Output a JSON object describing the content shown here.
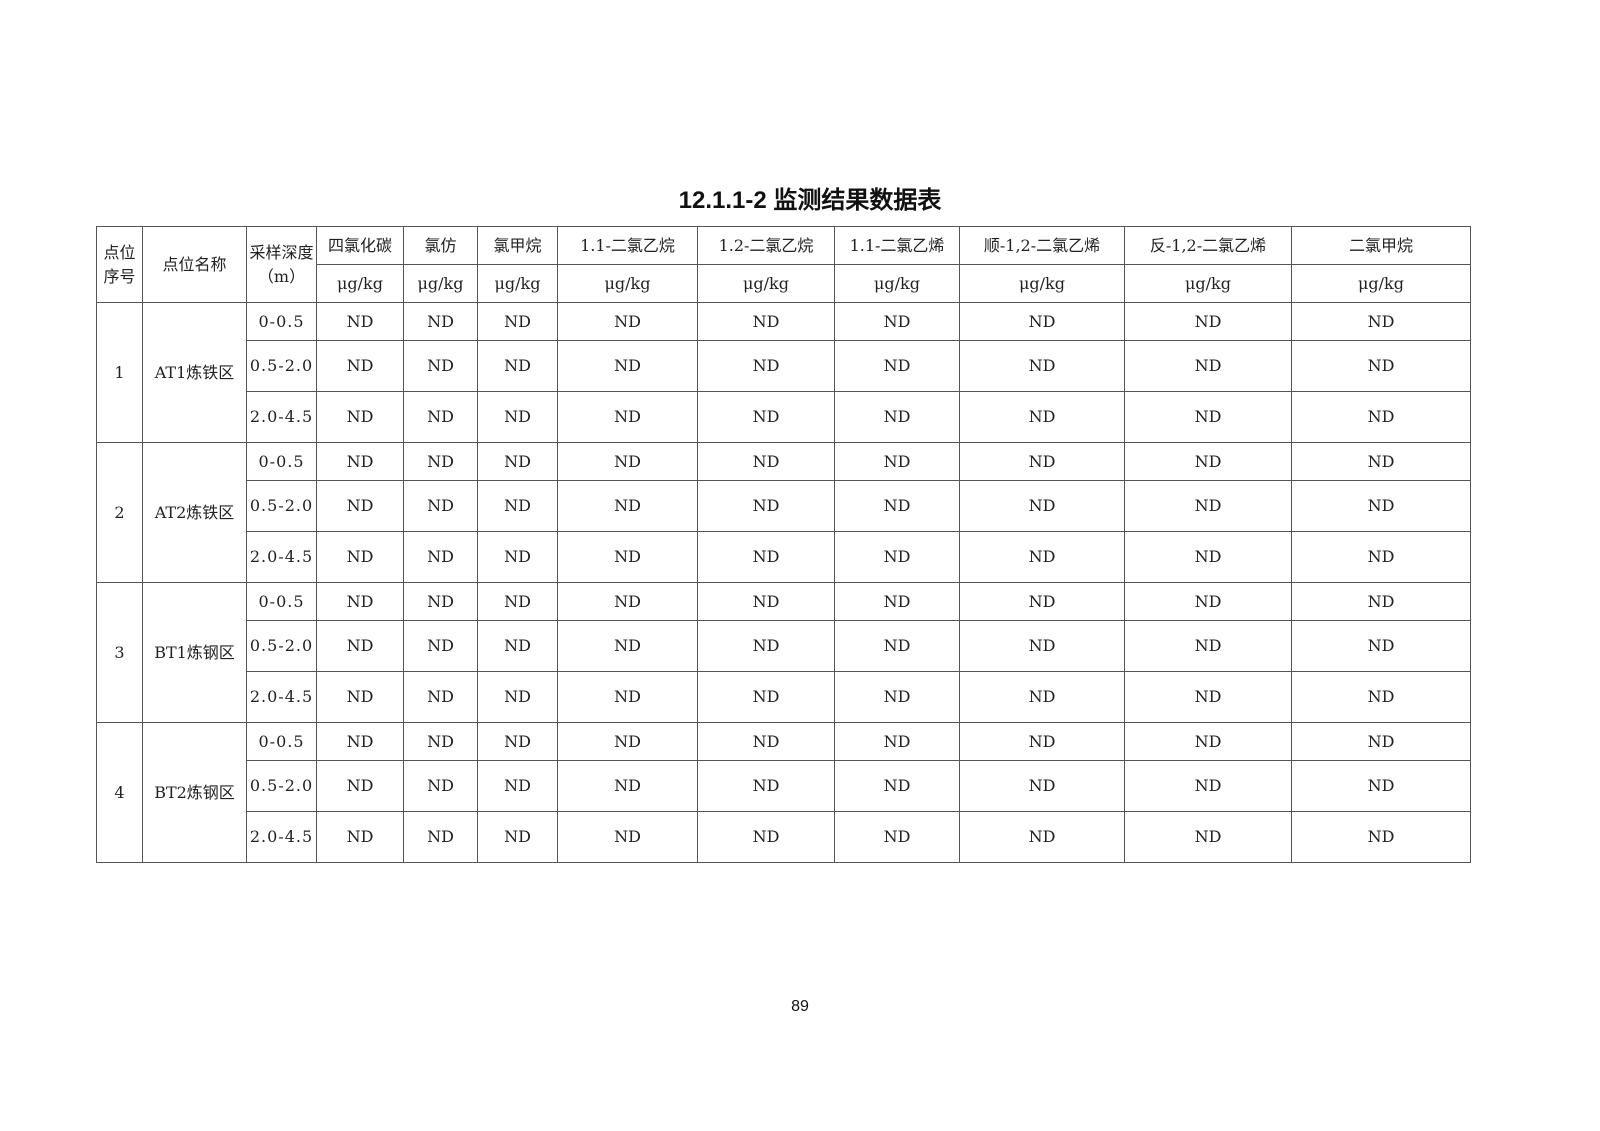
{
  "title": "12.1.1-2 监测结果数据表",
  "header": {
    "index": "点位序号",
    "name": "点位名称",
    "depth": "采样深度（m）",
    "analytes": [
      "四氯化碳",
      "氯仿",
      "氯甲烷",
      "1.1-二氯乙烷",
      "1.2-二氯乙烷",
      "1.1-二氯乙烯",
      "顺-1,2-二氯乙烯",
      "反-1,2-二氯乙烯",
      "二氯甲烷"
    ],
    "units": [
      "μg/kg",
      "μg/kg",
      "μg/kg",
      "μg/kg",
      "μg/kg",
      "μg/kg",
      "μg/kg",
      "μg/kg",
      "μg/kg"
    ]
  },
  "samples": [
    {
      "index": "1",
      "name": "AT1炼铁区",
      "rows": [
        {
          "depth": "0-0.5",
          "values": [
            "ND",
            "ND",
            "ND",
            "ND",
            "ND",
            "ND",
            "ND",
            "ND",
            "ND"
          ]
        },
        {
          "depth": "0.5-2.0",
          "values": [
            "ND",
            "ND",
            "ND",
            "ND",
            "ND",
            "ND",
            "ND",
            "ND",
            "ND"
          ]
        },
        {
          "depth": "2.0-4.5",
          "values": [
            "ND",
            "ND",
            "ND",
            "ND",
            "ND",
            "ND",
            "ND",
            "ND",
            "ND"
          ]
        }
      ]
    },
    {
      "index": "2",
      "name": "AT2炼铁区",
      "rows": [
        {
          "depth": "0-0.5",
          "values": [
            "ND",
            "ND",
            "ND",
            "ND",
            "ND",
            "ND",
            "ND",
            "ND",
            "ND"
          ]
        },
        {
          "depth": "0.5-2.0",
          "values": [
            "ND",
            "ND",
            "ND",
            "ND",
            "ND",
            "ND",
            "ND",
            "ND",
            "ND"
          ]
        },
        {
          "depth": "2.0-4.5",
          "values": [
            "ND",
            "ND",
            "ND",
            "ND",
            "ND",
            "ND",
            "ND",
            "ND",
            "ND"
          ]
        }
      ]
    },
    {
      "index": "3",
      "name": "BT1炼钢区",
      "rows": [
        {
          "depth": "0-0.5",
          "values": [
            "ND",
            "ND",
            "ND",
            "ND",
            "ND",
            "ND",
            "ND",
            "ND",
            "ND"
          ]
        },
        {
          "depth": "0.5-2.0",
          "values": [
            "ND",
            "ND",
            "ND",
            "ND",
            "ND",
            "ND",
            "ND",
            "ND",
            "ND"
          ]
        },
        {
          "depth": "2.0-4.5",
          "values": [
            "ND",
            "ND",
            "ND",
            "ND",
            "ND",
            "ND",
            "ND",
            "ND",
            "ND"
          ]
        }
      ]
    },
    {
      "index": "4",
      "name": "BT2炼钢区",
      "rows": [
        {
          "depth": "0-0.5",
          "values": [
            "ND",
            "ND",
            "ND",
            "ND",
            "ND",
            "ND",
            "ND",
            "ND",
            "ND"
          ]
        },
        {
          "depth": "0.5-2.0",
          "values": [
            "ND",
            "ND",
            "ND",
            "ND",
            "ND",
            "ND",
            "ND",
            "ND",
            "ND"
          ]
        },
        {
          "depth": "2.0-4.5",
          "values": [
            "ND",
            "ND",
            "ND",
            "ND",
            "ND",
            "ND",
            "ND",
            "ND",
            "ND"
          ]
        }
      ]
    }
  ],
  "page_number": "89"
}
